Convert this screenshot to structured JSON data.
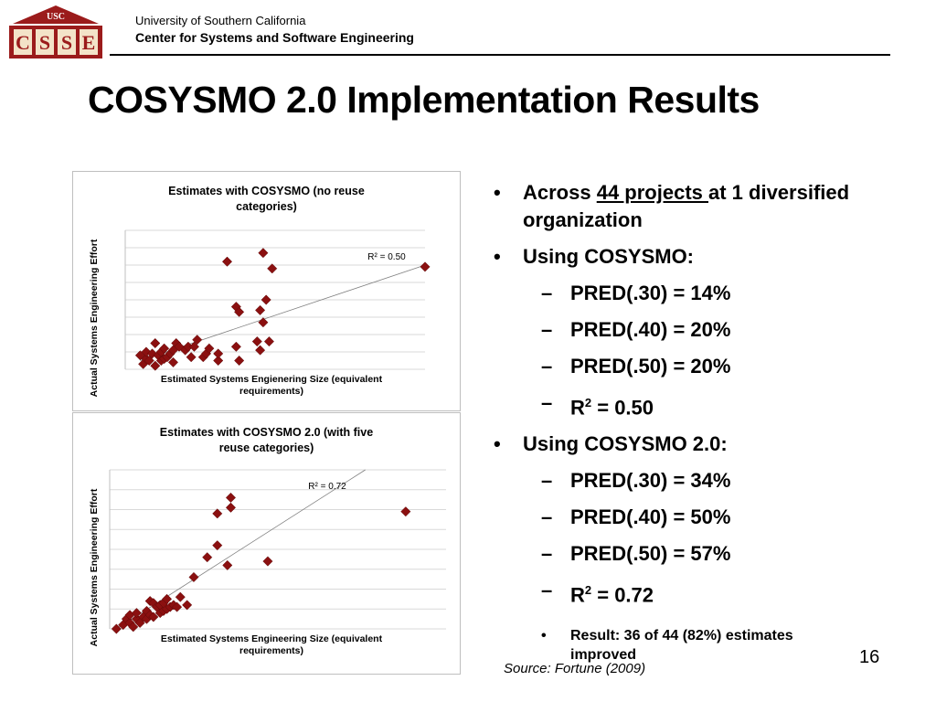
{
  "header": {
    "logo": {
      "top_text": "USC",
      "letters": [
        "C",
        "S",
        "S",
        "E"
      ],
      "color": "#9b1b1b"
    },
    "org_line1": "University of Southern California",
    "org_line2": "Center for Systems and Software Engineering"
  },
  "slide": {
    "title": "COSYSMO 2.0 Implementation Results",
    "page_number": "16",
    "source": "Source: Fortune (2009)"
  },
  "bullets": {
    "b1": {
      "pre": "Across ",
      "link": "44 projects ",
      "post": "at 1 diversified organization"
    },
    "b2": "Using COSYSMO:",
    "b2_sub": [
      "PRED(.30) = 14%",
      "PRED(.40) = 20%",
      "PRED(.50) = 20%"
    ],
    "b2_r2": {
      "base": "R",
      "sup": "2",
      "rest": " = 0.50"
    },
    "b3": "Using COSYSMO 2.0:",
    "b3_sub": [
      "PRED(.30) = 34%",
      "PRED(.40) = 50%",
      "PRED(.50) = 57%"
    ],
    "b3_r2": {
      "base": "R",
      "sup": "2",
      "rest": " = 0.72"
    },
    "result": "Result: 36 of 44 (82%) estimates improved"
  },
  "chart_data": [
    {
      "type": "scatter",
      "title": "Estimates with COSYSMO (no reuse categories)",
      "xlabel": "Estimated Systems Engienering Size (equivalent requirements)",
      "ylabel": "Actual Systems Engineering Effort",
      "annotation": "R² = 0.50",
      "xlim": [
        0,
        100
      ],
      "ylim": [
        0,
        8
      ],
      "grid": true,
      "marker_color": "#8b1010",
      "trendline": {
        "x": [
          5,
          100
        ],
        "y": [
          0.5,
          6.0
        ]
      },
      "points": [
        {
          "x": 5,
          "y": 0.8
        },
        {
          "x": 6,
          "y": 0.3
        },
        {
          "x": 7,
          "y": 0.6
        },
        {
          "x": 7,
          "y": 1.0
        },
        {
          "x": 8,
          "y": 0.5
        },
        {
          "x": 9,
          "y": 0.9
        },
        {
          "x": 10,
          "y": 0.2
        },
        {
          "x": 10,
          "y": 1.5
        },
        {
          "x": 11,
          "y": 0.8
        },
        {
          "x": 12,
          "y": 1.0
        },
        {
          "x": 12,
          "y": 0.5
        },
        {
          "x": 13,
          "y": 0.6
        },
        {
          "x": 13,
          "y": 1.2
        },
        {
          "x": 14,
          "y": 0.7
        },
        {
          "x": 15,
          "y": 0.9
        },
        {
          "x": 16,
          "y": 1.1
        },
        {
          "x": 16,
          "y": 0.4
        },
        {
          "x": 17,
          "y": 1.5
        },
        {
          "x": 18,
          "y": 1.3
        },
        {
          "x": 20,
          "y": 1.1
        },
        {
          "x": 21,
          "y": 1.3
        },
        {
          "x": 22,
          "y": 0.7
        },
        {
          "x": 23,
          "y": 1.3
        },
        {
          "x": 24,
          "y": 1.7
        },
        {
          "x": 26,
          "y": 0.7
        },
        {
          "x": 27,
          "y": 0.9
        },
        {
          "x": 28,
          "y": 1.2
        },
        {
          "x": 31,
          "y": 0.5
        },
        {
          "x": 31,
          "y": 0.9
        },
        {
          "x": 34,
          "y": 6.2
        },
        {
          "x": 37,
          "y": 3.6
        },
        {
          "x": 37,
          "y": 1.3
        },
        {
          "x": 38,
          "y": 3.3
        },
        {
          "x": 38,
          "y": 0.5
        },
        {
          "x": 44,
          "y": 1.6
        },
        {
          "x": 45,
          "y": 3.4
        },
        {
          "x": 45,
          "y": 1.1
        },
        {
          "x": 46,
          "y": 6.7
        },
        {
          "x": 46,
          "y": 2.7
        },
        {
          "x": 47,
          "y": 4.0
        },
        {
          "x": 48,
          "y": 1.6
        },
        {
          "x": 49,
          "y": 5.8
        },
        {
          "x": 100,
          "y": 5.9
        }
      ]
    },
    {
      "type": "scatter",
      "title": "Estimates with COSYSMO 2.0 (with five reuse categories)",
      "xlabel": "Estimated Systems Engineering Size (equivalent requirements)",
      "ylabel": "Actual Systems Engineering Effort",
      "annotation": "R² = 0.72",
      "xlim": [
        0,
        100
      ],
      "ylim": [
        0,
        8
      ],
      "grid": true,
      "marker_color": "#8b1010",
      "trendline": {
        "x": [
          2,
          76
        ],
        "y": [
          0.0,
          8.0
        ]
      },
      "points": [
        {
          "x": 2,
          "y": 0.0
        },
        {
          "x": 4,
          "y": 0.2
        },
        {
          "x": 5,
          "y": 0.5
        },
        {
          "x": 6,
          "y": 0.3
        },
        {
          "x": 6,
          "y": 0.7
        },
        {
          "x": 7,
          "y": 0.1
        },
        {
          "x": 8,
          "y": 0.5
        },
        {
          "x": 8,
          "y": 0.8
        },
        {
          "x": 9,
          "y": 0.3
        },
        {
          "x": 10,
          "y": 0.6
        },
        {
          "x": 11,
          "y": 0.5
        },
        {
          "x": 11,
          "y": 0.9
        },
        {
          "x": 12,
          "y": 0.7
        },
        {
          "x": 12,
          "y": 1.4
        },
        {
          "x": 13,
          "y": 0.6
        },
        {
          "x": 13,
          "y": 1.3
        },
        {
          "x": 14,
          "y": 1.1
        },
        {
          "x": 15,
          "y": 0.8
        },
        {
          "x": 15,
          "y": 1.2
        },
        {
          "x": 16,
          "y": 0.9
        },
        {
          "x": 16,
          "y": 1.3
        },
        {
          "x": 17,
          "y": 1.0
        },
        {
          "x": 17,
          "y": 1.5
        },
        {
          "x": 18,
          "y": 1.1
        },
        {
          "x": 19,
          "y": 1.2
        },
        {
          "x": 20,
          "y": 1.1
        },
        {
          "x": 21,
          "y": 1.6
        },
        {
          "x": 23,
          "y": 1.2
        },
        {
          "x": 25,
          "y": 2.6
        },
        {
          "x": 29,
          "y": 3.6
        },
        {
          "x": 32,
          "y": 4.2
        },
        {
          "x": 32,
          "y": 5.8
        },
        {
          "x": 35,
          "y": 3.2
        },
        {
          "x": 36,
          "y": 6.1
        },
        {
          "x": 36,
          "y": 6.6
        },
        {
          "x": 47,
          "y": 3.4
        },
        {
          "x": 88,
          "y": 5.9
        }
      ]
    }
  ]
}
